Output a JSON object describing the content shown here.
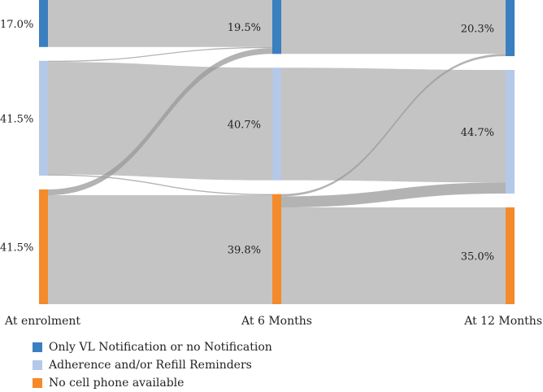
{
  "chart_data": {
    "type": "sankey",
    "stages": [
      "At enrolment",
      "At 6 Months",
      "At 12 Months"
    ],
    "categories": [
      {
        "key": "vl",
        "name": "Only VL Notification or no Notification",
        "color": "#3a7fbf"
      },
      {
        "key": "rem",
        "name": "Adherence and/or Refill Reminders",
        "color": "#b4c8e8"
      },
      {
        "key": "none",
        "name": "No cell phone available",
        "color": "#f58a2b"
      }
    ],
    "shares": [
      [
        17.0,
        41.5,
        41.5
      ],
      [
        19.5,
        40.7,
        39.8
      ],
      [
        20.3,
        44.7,
        35.0
      ]
    ],
    "share_labels": [
      [
        "17.0%",
        "41.5%",
        "41.5%"
      ],
      [
        "19.5%",
        "40.7%",
        "39.8%"
      ],
      [
        "20.3%",
        "44.7%",
        "35.0%"
      ]
    ],
    "flows": [
      {
        "from_stage": 0,
        "to_stage": 1,
        "from": "vl",
        "to": "vl",
        "value": 17.0
      },
      {
        "from_stage": 0,
        "to_stage": 1,
        "from": "rem",
        "to": "vl",
        "value": 0.4
      },
      {
        "from_stage": 0,
        "to_stage": 1,
        "from": "rem",
        "to": "rem",
        "value": 40.7
      },
      {
        "from_stage": 0,
        "to_stage": 1,
        "from": "rem",
        "to": "none",
        "value": 0.4
      },
      {
        "from_stage": 0,
        "to_stage": 1,
        "from": "none",
        "to": "vl",
        "value": 2.1
      },
      {
        "from_stage": 0,
        "to_stage": 1,
        "from": "none",
        "to": "none",
        "value": 39.4
      },
      {
        "from_stage": 1,
        "to_stage": 2,
        "from": "vl",
        "to": "vl",
        "value": 19.5
      },
      {
        "from_stage": 1,
        "to_stage": 2,
        "from": "rem",
        "to": "rem",
        "value": 40.7
      },
      {
        "from_stage": 1,
        "to_stage": 2,
        "from": "none",
        "to": "vl",
        "value": 0.8
      },
      {
        "from_stage": 1,
        "to_stage": 2,
        "from": "none",
        "to": "rem",
        "value": 4.0
      },
      {
        "from_stage": 1,
        "to_stage": 2,
        "from": "none",
        "to": "none",
        "value": 35.0
      }
    ]
  },
  "legend": {
    "items": [
      {
        "label": "Only VL Notification or no Notification",
        "color": "#3a7fbf"
      },
      {
        "label": "Adherence and/or Refill Reminders",
        "color": "#b4c8e8"
      },
      {
        "label": "No cell phone available",
        "color": "#f58a2b"
      }
    ]
  }
}
